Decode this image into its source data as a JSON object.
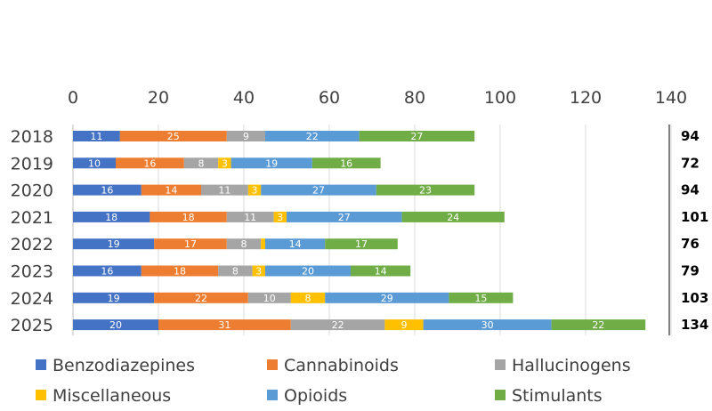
{
  "chart_data": {
    "type": "bar",
    "orientation": "horizontal",
    "stacked": true,
    "title": "",
    "xlabel": "",
    "ylabel": "",
    "xlim": [
      0,
      140
    ],
    "xticks": [
      0,
      20,
      40,
      60,
      80,
      100,
      120,
      140
    ],
    "xtick_labels": [
      "0",
      "20",
      "40",
      "60",
      "80",
      "100",
      "120",
      "140"
    ],
    "grid": true,
    "legend_position": "bottom",
    "categories": [
      "2018",
      "2019",
      "2020",
      "2021",
      "2022",
      "2023",
      "2024",
      "2025"
    ],
    "series": [
      {
        "name": "Benzodiazepines",
        "color": "#4472C4",
        "values": [
          11,
          10,
          16,
          18,
          19,
          16,
          19,
          20
        ],
        "labels": [
          "11",
          "10",
          "16",
          "18",
          "19",
          "16",
          "19",
          "20"
        ]
      },
      {
        "name": "Cannabinoids",
        "color": "#ED7D31",
        "values": [
          25,
          16,
          14,
          18,
          17,
          18,
          22,
          31
        ],
        "labels": [
          "25",
          "16",
          "14",
          "18",
          "17",
          "18",
          "22",
          "31"
        ]
      },
      {
        "name": "Hallucinogens",
        "color": "#A5A5A5",
        "values": [
          9,
          8,
          11,
          11,
          8,
          8,
          10,
          22
        ],
        "labels": [
          "9",
          "8",
          "11",
          "11",
          "8",
          "8",
          "10",
          "22"
        ]
      },
      {
        "name": "Miscellaneous",
        "color": "#FFC000",
        "values": [
          0,
          3,
          3,
          3,
          1,
          3,
          8,
          9
        ],
        "labels": [
          "",
          "3",
          "3",
          "3",
          "",
          "3",
          "8",
          "9"
        ]
      },
      {
        "name": "Opioids",
        "color": "#5B9BD5",
        "values": [
          22,
          19,
          27,
          27,
          14,
          20,
          29,
          30
        ],
        "labels": [
          "22",
          "19",
          "27",
          "27",
          "14",
          "20",
          "29",
          "30"
        ]
      },
      {
        "name": "Stimulants",
        "color": "#70AD47",
        "values": [
          27,
          16,
          23,
          24,
          17,
          14,
          15,
          22
        ],
        "labels": [
          "27",
          "16",
          "23",
          "24",
          "17",
          "14",
          "15",
          "22"
        ]
      }
    ],
    "totals": [
      "94",
      "72",
      "94",
      "101",
      "76",
      "79",
      "103",
      "134"
    ]
  }
}
